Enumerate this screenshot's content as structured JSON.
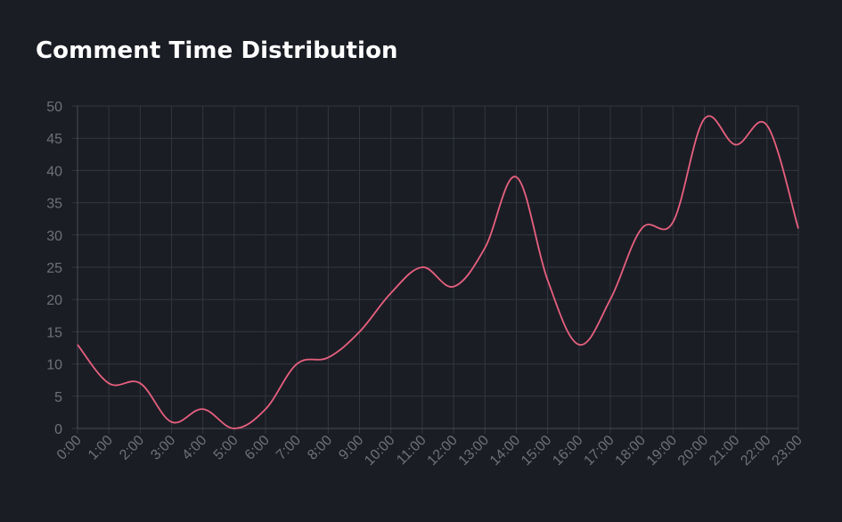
{
  "colors": {
    "background": "#1b1d25",
    "grid": "#33363f",
    "tick_text": "#6e717a",
    "title_text": "#ffffff",
    "series": "#e8607e"
  },
  "chart_data": {
    "type": "line",
    "title": "Comment Time Distribution",
    "xlabel": "",
    "ylabel": "",
    "categories": [
      "0:00",
      "1:00",
      "2:00",
      "3:00",
      "4:00",
      "5:00",
      "6:00",
      "7:00",
      "8:00",
      "9:00",
      "10:00",
      "11:00",
      "12:00",
      "13:00",
      "14:00",
      "15:00",
      "16:00",
      "17:00",
      "18:00",
      "19:00",
      "20:00",
      "21:00",
      "22:00",
      "23:00"
    ],
    "series": [
      {
        "values": [
          13,
          7,
          7,
          1,
          3,
          0,
          3,
          10,
          11,
          15,
          21,
          25,
          22,
          28,
          39,
          23,
          13,
          20,
          31,
          32,
          48,
          44,
          47,
          31
        ]
      }
    ],
    "ylim": [
      0,
      50
    ],
    "yticks": [
      "0",
      "5",
      "10",
      "15",
      "20",
      "25",
      "30",
      "35",
      "40",
      "45",
      "50"
    ],
    "grid": true,
    "smooth": true,
    "legend": "none"
  }
}
